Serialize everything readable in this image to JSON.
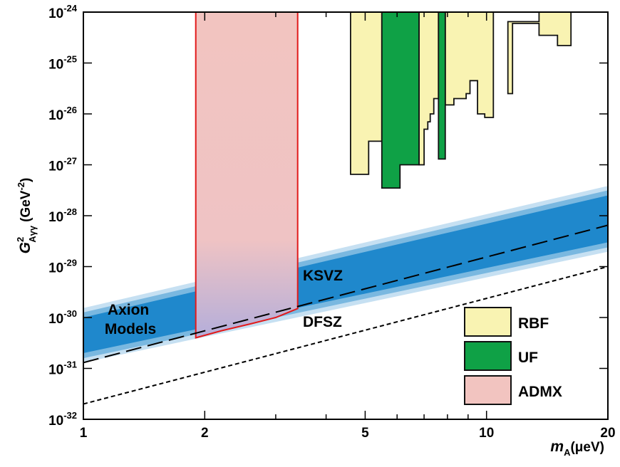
{
  "chart_data": {
    "type": "area",
    "xlabel": "m_A(μeV)",
    "ylabel": "G²_Aγγ (GeV⁻²)",
    "x_scale": "log",
    "y_scale": "log",
    "xlim": [
      1,
      20
    ],
    "ylim": [
      1e-32,
      1e-24
    ],
    "x_ticks": [
      {
        "value": 1,
        "label": "1"
      },
      {
        "value": 2,
        "label": "2"
      },
      {
        "value": 5,
        "label": "5"
      },
      {
        "value": 10,
        "label": "10"
      },
      {
        "value": 20,
        "label": "20"
      }
    ],
    "y_ticks": [
      {
        "value": 1e-32,
        "base": "10",
        "exp": "-32"
      },
      {
        "value": 1e-31,
        "base": "10",
        "exp": "-31"
      },
      {
        "value": 1e-30,
        "base": "10",
        "exp": "-30"
      },
      {
        "value": 1e-29,
        "base": "10",
        "exp": "-29"
      },
      {
        "value": 1e-28,
        "base": "10",
        "exp": "-28"
      },
      {
        "value": 1e-27,
        "base": "10",
        "exp": "-27"
      },
      {
        "value": 1e-26,
        "base": "10",
        "exp": "-26"
      },
      {
        "value": 1e-25,
        "base": "10",
        "exp": "-25"
      },
      {
        "value": 1e-24,
        "base": "10",
        "exp": "-24"
      }
    ],
    "axis_title_parts": {
      "y_main": "G",
      "y_sup": "2",
      "y_sub": "Aγγ",
      "y_unit": "(GeV",
      "y_unit_exp": "-2",
      "y_unit_end": ")",
      "x_main": "m",
      "x_sub": "A",
      "x_unit": "(μeV)"
    },
    "bands": [
      {
        "name": "Axion Models",
        "label_lines": [
          "Axion",
          "Models"
        ],
        "color": "#1f88cc",
        "lower": [
          [
            1,
            2e-31
          ],
          [
            20,
            3e-29
          ]
        ],
        "upper": [
          [
            1,
            1e-30
          ],
          [
            20,
            2.5e-28
          ]
        ]
      }
    ],
    "lines": [
      {
        "name": "KSVZ",
        "style": "long-dash",
        "points": [
          [
            1,
            1.3e-31
          ],
          [
            20,
            6.5e-29
          ]
        ]
      },
      {
        "name": "DFSZ",
        "style": "short-dash",
        "points": [
          [
            1,
            2e-32
          ],
          [
            20,
            1e-29
          ]
        ]
      }
    ],
    "regions": [
      {
        "name": "RBF",
        "fill": "#f9f3b2",
        "stroke": "#111111",
        "outline": [
          [
            4.6,
            6.5e-28
          ],
          [
            5.1,
            6.5e-28
          ],
          [
            5.1,
            2.9e-27
          ],
          [
            5.5,
            2.9e-27
          ],
          [
            5.5,
            1e-24
          ],
          [
            4.6,
            1e-24
          ]
        ]
      },
      {
        "name": "RBF",
        "fill": "#f9f3b2",
        "stroke": "#111111",
        "outline": [
          [
            6.8,
            1e-27
          ],
          [
            7.0,
            1e-27
          ],
          [
            7.0,
            5e-27
          ],
          [
            7.15,
            5e-27
          ],
          [
            7.15,
            7e-27
          ],
          [
            7.25,
            7e-27
          ],
          [
            7.25,
            1e-26
          ],
          [
            7.4,
            1e-26
          ],
          [
            7.4,
            2e-26
          ],
          [
            7.6,
            2e-26
          ],
          [
            7.6,
            1e-24
          ],
          [
            6.8,
            1e-24
          ]
        ]
      },
      {
        "name": "RBF",
        "fill": "#f9f3b2",
        "stroke": "#111111",
        "outline": [
          [
            7.9,
            1.5e-26
          ],
          [
            8.3,
            1.5e-26
          ],
          [
            8.3,
            2e-26
          ],
          [
            8.9,
            2e-26
          ],
          [
            8.9,
            2.5e-26
          ],
          [
            9.1,
            2.5e-26
          ],
          [
            9.1,
            4.5e-26
          ],
          [
            9.5,
            4.5e-26
          ],
          [
            9.5,
            1e-26
          ],
          [
            9.9,
            1e-26
          ],
          [
            9.9,
            8.5e-27
          ],
          [
            10.4,
            8.5e-27
          ],
          [
            10.4,
            1e-24
          ],
          [
            7.9,
            1e-24
          ]
        ]
      },
      {
        "name": "RBF",
        "fill": "#f9f3b2",
        "stroke": "#111111",
        "outline": [
          [
            11.3,
            2.5e-26
          ],
          [
            11.6,
            2.5e-26
          ],
          [
            11.6,
            6e-25
          ],
          [
            13.5,
            6e-25
          ],
          [
            13.5,
            3.5e-25
          ],
          [
            15.0,
            3.5e-25
          ],
          [
            15.0,
            2.2e-25
          ],
          [
            16.2,
            2.2e-25
          ],
          [
            16.2,
            1e-24
          ],
          [
            13.5,
            1e-24
          ],
          [
            13.5,
            6.5e-25
          ],
          [
            11.3,
            6.5e-25
          ]
        ]
      },
      {
        "name": "UF",
        "fill": "#0fa146",
        "stroke": "#111111",
        "outline": [
          [
            5.5,
            3.5e-28
          ],
          [
            6.1,
            3.5e-28
          ],
          [
            6.1,
            1e-27
          ],
          [
            6.8,
            1e-27
          ],
          [
            6.8,
            1e-24
          ],
          [
            5.5,
            1e-24
          ]
        ]
      },
      {
        "name": "UF",
        "fill": "#0fa146",
        "stroke": "#111111",
        "outline": [
          [
            7.6,
            1.3e-27
          ],
          [
            7.9,
            1.3e-27
          ],
          [
            7.9,
            1e-24
          ],
          [
            7.6,
            1e-24
          ]
        ]
      },
      {
        "name": "ADMX",
        "fill": "#f2c4c0",
        "stroke": "#e11a1a",
        "outline": [
          [
            1.9,
            4e-31
          ],
          [
            2.2,
            5.5e-31
          ],
          [
            2.6,
            7.5e-31
          ],
          [
            3.0,
            1e-30
          ],
          [
            3.4,
            1.5e-30
          ],
          [
            3.4,
            1e-24
          ],
          [
            1.9,
            1e-24
          ]
        ]
      }
    ],
    "legend": {
      "placement": "bottom-right",
      "entries": [
        {
          "label": "RBF",
          "color": "#f9f3b2"
        },
        {
          "label": "UF",
          "color": "#0fa146"
        },
        {
          "label": "ADMX",
          "color": "#f2c4c0"
        }
      ]
    },
    "annotations": [
      {
        "text": "KSVZ",
        "target": "KSVZ"
      },
      {
        "text": "DFSZ",
        "target": "DFSZ"
      }
    ],
    "grid": false
  }
}
